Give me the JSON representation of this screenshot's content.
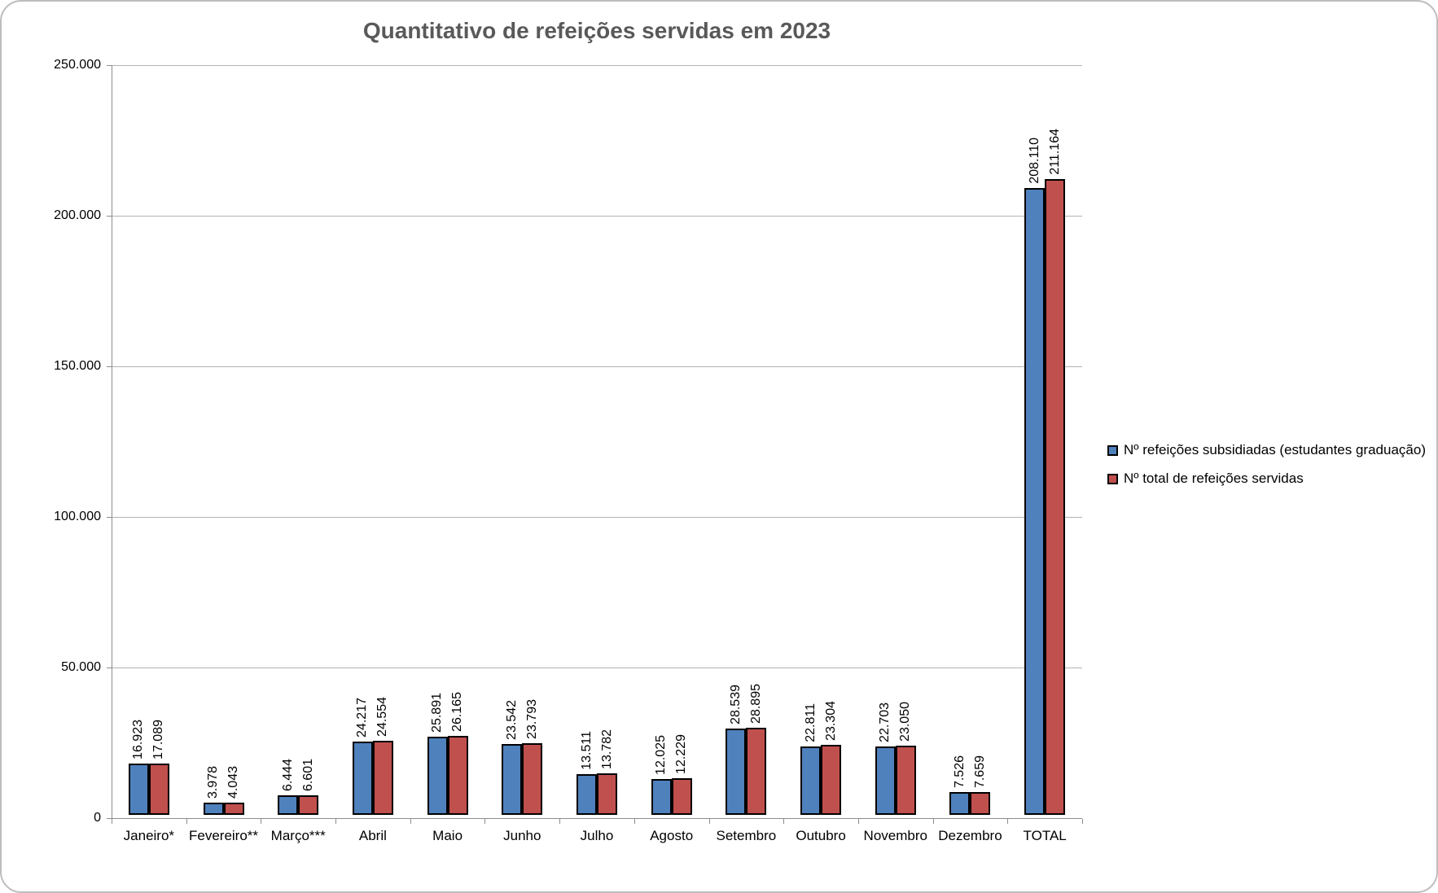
{
  "chart": {
    "title": "Quantitativo de refeições servidas em 2023"
  },
  "legend": {
    "items": [
      {
        "label": "Nº refeições subsidiadas (estudantes graduação)",
        "color": "#4f81bd"
      },
      {
        "label": "Nº total de refeições servidas",
        "color": "#c0504d"
      }
    ]
  },
  "chart_data": {
    "type": "bar",
    "title": "Quantitativo de refeições servidas em 2023",
    "categories": [
      "Janeiro*",
      "Fevereiro**",
      "Março***",
      "Abril",
      "Maio",
      "Junho",
      "Julho",
      "Agosto",
      "Setembro",
      "Outubro",
      "Novembro",
      "Dezembro",
      "TOTAL"
    ],
    "series": [
      {
        "name": "Nº refeições subsidiadas (estudantes graduação)",
        "color": "#4f81bd",
        "values": [
          16923,
          3978,
          6444,
          24217,
          25891,
          23542,
          13511,
          12025,
          28539,
          22811,
          22703,
          7526,
          208110
        ]
      },
      {
        "name": "Nº total de refeições servidas",
        "color": "#c0504d",
        "values": [
          17089,
          4043,
          6601,
          24554,
          26165,
          23793,
          13782,
          12229,
          28895,
          23304,
          23050,
          7659,
          211164
        ]
      }
    ],
    "ylim": [
      0,
      250000
    ],
    "ytick_step": 50000,
    "ytick_labels": [
      "0",
      "50.000",
      "100.000",
      "150.000",
      "200.000",
      "250.000"
    ],
    "grid": true,
    "legend_position": "right",
    "data_labels": "rotated-90",
    "number_format": "thousands-dot",
    "colors": {
      "title_text": "#595959",
      "axis": "#8c8c8c",
      "gridline": "#b3b3b3",
      "bar_border": "#000000",
      "frame_border": "#bdbdbd"
    }
  }
}
